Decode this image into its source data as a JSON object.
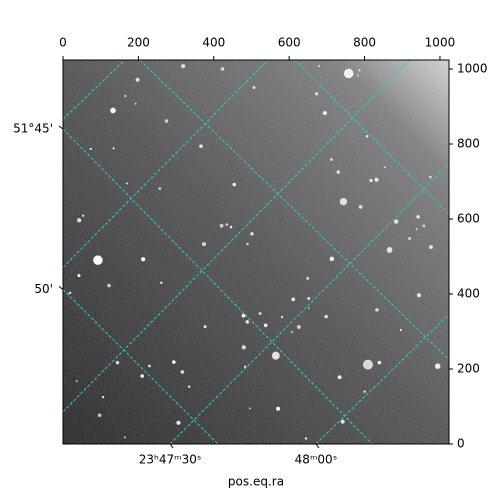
{
  "chart_data": {
    "type": "image",
    "xlabel": "pos.eq.ra",
    "xlim": [
      0,
      1024
    ],
    "ylim": [
      0,
      1024
    ],
    "xticks": [
      0,
      200,
      400,
      600,
      800,
      1000
    ],
    "yticks": [
      0,
      200,
      400,
      600,
      800,
      1000
    ],
    "grid_color": "#22d3d3",
    "ra_grid": [
      {
        "label": "23ʰ47ᵐ30ˢ",
        "x": [
          284,
          1024
        ],
        "y": [
          0,
          746
        ]
      },
      {
        "label": "48ᵐ00ˢ",
        "x": [
          671,
          1024
        ],
        "y": [
          0,
          345
        ]
      },
      {
        "x": [
          0,
          164
        ],
        "y": [
          866,
          1024
        ]
      },
      {
        "x": [
          0,
          544
        ],
        "y": [
          471,
          1024
        ]
      },
      {
        "x": [
          0,
          920
        ],
        "y": [
          86,
          1024
        ]
      }
    ],
    "dec_grid": [
      {
        "label": "51°45'",
        "x": [
          0,
          820
        ],
        "y": [
          840,
          0
        ]
      },
      {
        "label": "50'",
        "x": [
          0,
          411
        ],
        "y": [
          412,
          0
        ]
      },
      {
        "x": [
          204,
          1024
        ],
        "y": [
          1024,
          225
        ]
      },
      {
        "x": [
          615,
          1024
        ],
        "y": [
          1024,
          612
        ]
      }
    ]
  }
}
